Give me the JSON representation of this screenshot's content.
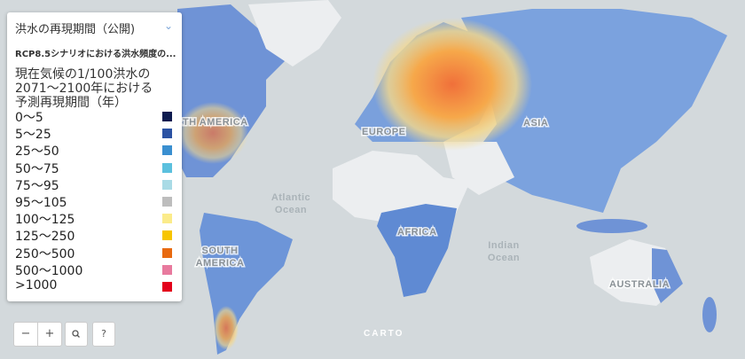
{
  "panel": {
    "title": "洪水の再現期間（公開)",
    "subtitle": "RCP8.5シナリオにおける洪水頻度の...",
    "legend_title": [
      "現在気候の1/100洪水の",
      "2071〜2100年における",
      "予測再現期間（年）"
    ],
    "legend": [
      {
        "label": "0〜5",
        "color": "#0d1b4f"
      },
      {
        "label": "5〜25",
        "color": "#2b52a3"
      },
      {
        "label": "25〜50",
        "color": "#3a8fd0"
      },
      {
        "label": "50〜75",
        "color": "#5bc0de"
      },
      {
        "label": "75〜95",
        "color": "#a9dbe6"
      },
      {
        "label": "95〜105",
        "color": "#bdbdbd"
      },
      {
        "label": "100〜125",
        "color": "#fbeb8a"
      },
      {
        "label": "125〜250",
        "color": "#f7c500"
      },
      {
        "label": "250〜500",
        "color": "#e86a10"
      },
      {
        "label": "500〜1000",
        "color": "#e87a9e"
      },
      {
        "label": ">1000",
        "color": "#e3001b"
      }
    ]
  },
  "labels": {
    "north_america": "NORTH AMERICA",
    "europe": "EUROPE",
    "asia": "ASIA",
    "africa": "AFRICA",
    "south_america": [
      "SOUTH",
      "AMERICA"
    ],
    "australia": "AUSTRALIA",
    "atlantic": [
      "Atlantic",
      "Ocean"
    ],
    "indian": [
      "Indian",
      "Ocean"
    ]
  },
  "attribution": "CARTO",
  "controls": {
    "zoom_out": "−",
    "zoom_in": "+",
    "help": "?"
  }
}
